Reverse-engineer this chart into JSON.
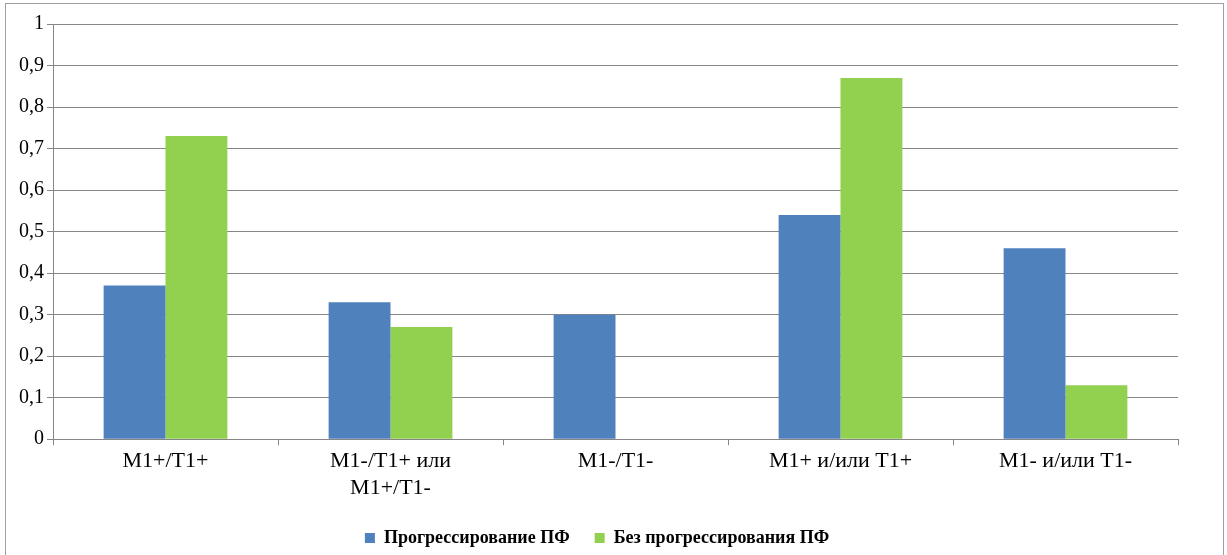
{
  "chart_data": {
    "type": "bar",
    "categories": [
      "M1+/T1+",
      "M1-/T1+ или M1+/T1-",
      "M1-/T1-",
      "M1+ и/или T1+",
      "M1- и/или T1-"
    ],
    "series": [
      {
        "name": "Прогрессирование ПФ",
        "color": "#4f81bd",
        "values": [
          0.37,
          0.33,
          0.3,
          0.54,
          0.46
        ]
      },
      {
        "name": "Без прогрессирования ПФ",
        "color": "#92d050",
        "values": [
          0.73,
          0.27,
          0,
          0.87,
          0.13
        ]
      }
    ],
    "ylim": [
      0,
      1
    ],
    "yticks": [
      0,
      {
        "value": 0.1,
        "label": "0,1"
      },
      {
        "value": 0.2,
        "label": "0,2"
      },
      {
        "value": 0.3,
        "label": "0,3"
      },
      {
        "value": 0.4,
        "label": "0,4"
      },
      {
        "value": 0.5,
        "label": "0,5"
      },
      {
        "value": 0.6,
        "label": "0,6"
      },
      {
        "value": 0.7,
        "label": "0,7"
      },
      {
        "value": 0.8,
        "label": "0,8"
      },
      {
        "value": 0.9,
        "label": "0,9"
      },
      1
    ],
    "grid": "y",
    "legend": "bottom"
  }
}
